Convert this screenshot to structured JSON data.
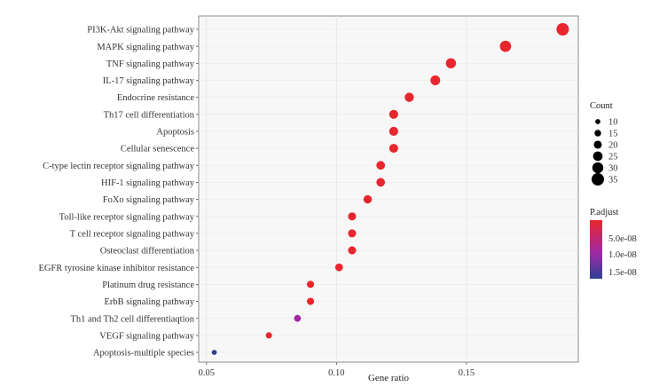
{
  "chart_data": {
    "type": "scatter",
    "title": "",
    "xlabel": "Gene ratio",
    "ylabel": "",
    "xlim": [
      0.047,
      0.193
    ],
    "xticks": [
      0.05,
      0.1,
      0.15
    ],
    "xtick_labels": [
      "0.05",
      "0.10",
      "0.15"
    ],
    "grid": true,
    "points": [
      {
        "pathway": "PI3K-Akt signaling pathway",
        "gene_ratio": 0.187,
        "count": 35,
        "p_adjust": 2e-08
      },
      {
        "pathway": "MAPK signaling pathway",
        "gene_ratio": 0.165,
        "count": 31,
        "p_adjust": 2e-08
      },
      {
        "pathway": "TNF signaling pathway",
        "gene_ratio": 0.144,
        "count": 27,
        "p_adjust": 2e-08
      },
      {
        "pathway": "IL-17 signaling pathway",
        "gene_ratio": 0.138,
        "count": 26,
        "p_adjust": 2e-08
      },
      {
        "pathway": "Endocrine resistance",
        "gene_ratio": 0.128,
        "count": 24,
        "p_adjust": 2e-08
      },
      {
        "pathway": "Th17 cell differentiation",
        "gene_ratio": 0.122,
        "count": 23,
        "p_adjust": 2e-08
      },
      {
        "pathway": "Apoptosis",
        "gene_ratio": 0.122,
        "count": 23,
        "p_adjust": 2e-08
      },
      {
        "pathway": "Cellular senescence",
        "gene_ratio": 0.122,
        "count": 23,
        "p_adjust": 2e-08
      },
      {
        "pathway": "C-type lectin receptor signaling pathway",
        "gene_ratio": 0.117,
        "count": 22,
        "p_adjust": 2e-08
      },
      {
        "pathway": "HIF-1 signaling pathway",
        "gene_ratio": 0.117,
        "count": 22,
        "p_adjust": 2e-08
      },
      {
        "pathway": "FoXo signaling pathway",
        "gene_ratio": 0.112,
        "count": 21,
        "p_adjust": 2e-08
      },
      {
        "pathway": "Toll-like receptor signaling pathway",
        "gene_ratio": 0.106,
        "count": 20,
        "p_adjust": 2e-08
      },
      {
        "pathway": "T cell receptor signaling pathway",
        "gene_ratio": 0.106,
        "count": 20,
        "p_adjust": 2e-08
      },
      {
        "pathway": "Osteoclast differentiation",
        "gene_ratio": 0.106,
        "count": 20,
        "p_adjust": 2e-08
      },
      {
        "pathway": "EGFR tyrosine kinase inhibitor resistance",
        "gene_ratio": 0.101,
        "count": 19,
        "p_adjust": 2e-08
      },
      {
        "pathway": "Platinum drug resistance",
        "gene_ratio": 0.09,
        "count": 17,
        "p_adjust": 2e-08
      },
      {
        "pathway": "ErbB signaling pathway",
        "gene_ratio": 0.09,
        "count": 17,
        "p_adjust": 2e-08
      },
      {
        "pathway": "Th1 and Th2 cell differentiaqtion",
        "gene_ratio": 0.085,
        "count": 16,
        "p_adjust": 1e-08
      },
      {
        "pathway": "VEGF signaling pathway",
        "gene_ratio": 0.074,
        "count": 14,
        "p_adjust": 2e-08
      },
      {
        "pathway": "Apoptosis-multiple species",
        "gene_ratio": 0.053,
        "count": 10,
        "p_adjust": 1.5e-08
      }
    ],
    "legend_size": {
      "title": "Count",
      "values": [
        10,
        15,
        20,
        25,
        30,
        35
      ],
      "labels": [
        "10",
        "15",
        "20",
        "25",
        "30",
        "35"
      ]
    },
    "legend_color": {
      "title": "P.adjust",
      "labels": [
        "5.0e-08",
        "1.0e-08",
        "1.5e-08"
      ],
      "colors": [
        "#e8262d",
        "#a12aa6",
        "#2e3f96"
      ]
    }
  }
}
